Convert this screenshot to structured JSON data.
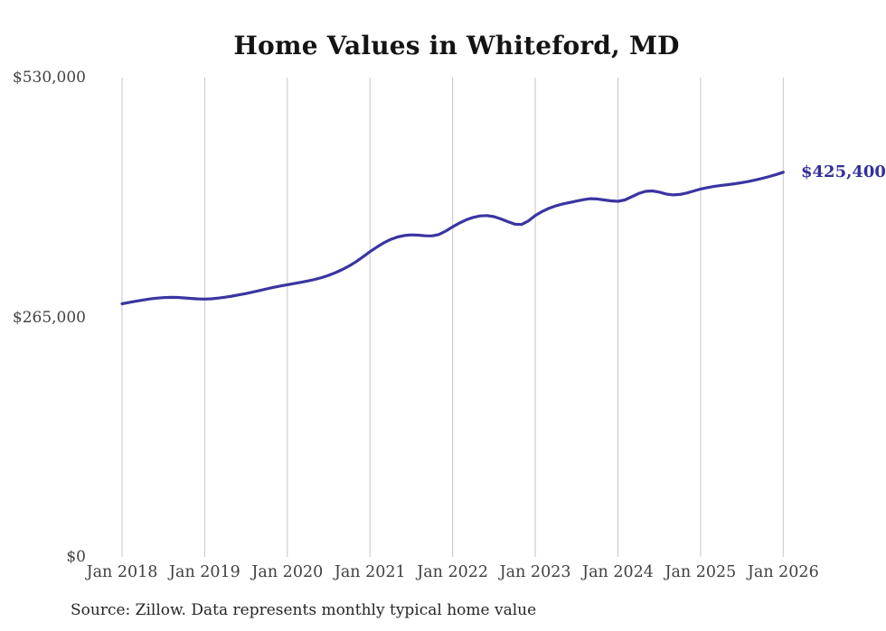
{
  "title": "Home Values in Whiteford, MD",
  "source_note": "Source: Zillow. Data represents monthly typical home value",
  "colors": {
    "line": "#3b34a1",
    "end_label": "#33309b",
    "grid": "#c6c6c6",
    "axis_text": "#414141",
    "title_text": "#141414",
    "background": "#ffffff"
  },
  "chart_data": {
    "type": "line",
    "title": "Home Values in Whiteford, MD",
    "xlabel": "",
    "ylabel": "",
    "legend": "none",
    "grid": "vertical-only",
    "x_interval": "monthly",
    "x_range": [
      "Jan 2018",
      "Jan 2026"
    ],
    "x_tick_labels": [
      "Jan 2018",
      "Jan 2019",
      "Jan 2020",
      "Jan 2021",
      "Jan 2022",
      "Jan 2023",
      "Jan 2024",
      "Jan 2025",
      "Jan 2026"
    ],
    "y_ticks": [
      530000,
      265000,
      0
    ],
    "y_tick_labels": [
      "$530,000",
      "$265,000",
      "$0"
    ],
    "ylim": [
      0,
      530000
    ],
    "final_value": 425400,
    "final_value_label": "$425,400",
    "series": [
      {
        "name": "Monthly typical home value",
        "values": [
          280000,
          281400,
          282800,
          284100,
          285300,
          286200,
          286800,
          287100,
          287000,
          286500,
          285900,
          285400,
          285200,
          285500,
          286300,
          287300,
          288500,
          289900,
          291300,
          292900,
          294600,
          296400,
          298100,
          299600,
          301000,
          302300,
          303700,
          305200,
          306900,
          308900,
          311400,
          314400,
          317900,
          321900,
          326600,
          332000,
          337600,
          342700,
          347300,
          351100,
          353800,
          355400,
          356100,
          355800,
          355100,
          355000,
          356500,
          360300,
          365000,
          369300,
          372900,
          375500,
          377100,
          377500,
          376300,
          373800,
          370800,
          368000,
          367600,
          371500,
          377500,
          382000,
          385600,
          388300,
          390400,
          392000,
          393600,
          395100,
          396200,
          395900,
          394800,
          393800,
          393300,
          394800,
          398200,
          401800,
          404200,
          404700,
          403400,
          401300,
          400300,
          400800,
          402400,
          404600,
          406800,
          408400,
          409800,
          410800,
          411700,
          412700,
          413900,
          415300,
          416900,
          418700,
          420700,
          422900,
          425400
        ]
      }
    ]
  }
}
